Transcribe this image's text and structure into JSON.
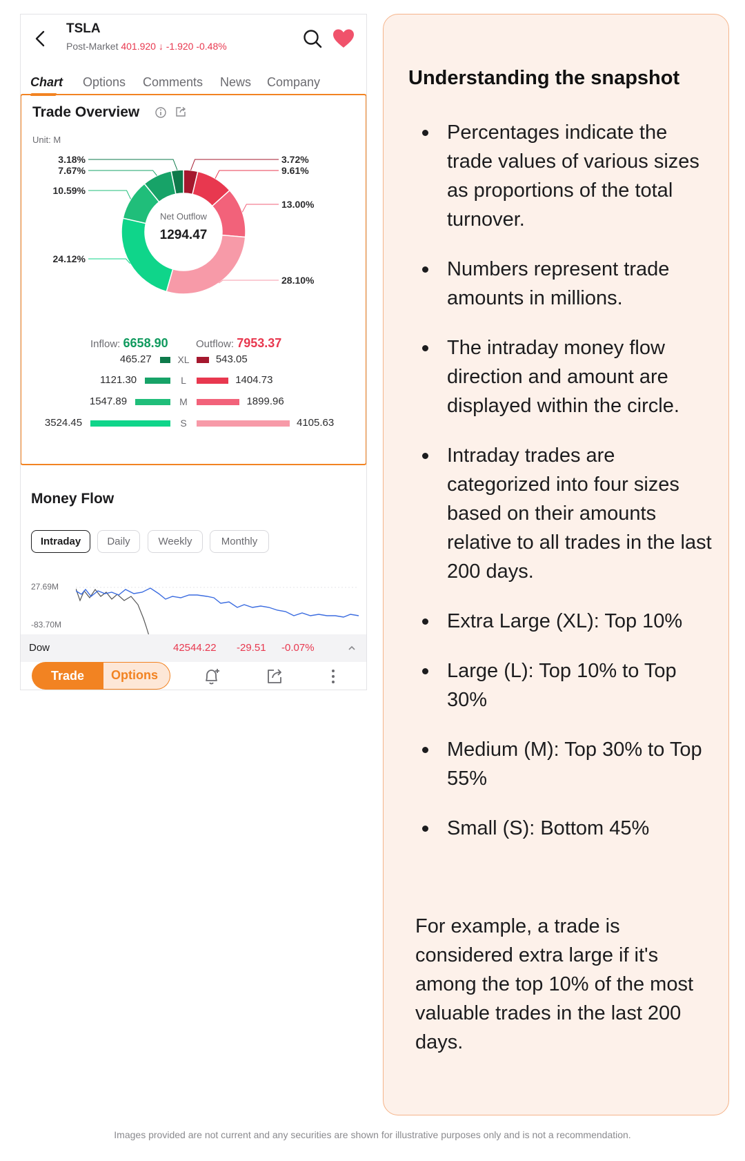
{
  "header": {
    "ticker": "TSLA",
    "session_label": "Post-Market",
    "price": "401.920",
    "change": "-1.920",
    "change_pct": "-0.48%"
  },
  "tabs": [
    {
      "label": "Chart",
      "active": true
    },
    {
      "label": "Options",
      "active": false
    },
    {
      "label": "Comments",
      "active": false
    },
    {
      "label": "News",
      "active": false
    },
    {
      "label": "Company",
      "active": false
    }
  ],
  "trade_overview": {
    "title": "Trade Overview",
    "unit_label": "Unit: M",
    "center_label": "Net Outflow",
    "center_value": "1294.47",
    "inflow_label": "Inflow:",
    "inflow_value": "6658.90",
    "outflow_label": "Outflow:",
    "outflow_value": "7953.37",
    "rows": [
      {
        "cat": "XL",
        "inflow": "465.27",
        "outflow": "543.05"
      },
      {
        "cat": "L",
        "inflow": "1121.30",
        "outflow": "1404.73"
      },
      {
        "cat": "M",
        "inflow": "1547.89",
        "outflow": "1899.96"
      },
      {
        "cat": "S",
        "inflow": "3524.45",
        "outflow": "4105.63"
      }
    ]
  },
  "chart_data": {
    "type": "pie",
    "labels": [
      "Outflow XL",
      "Outflow L",
      "Outflow M",
      "Outflow S",
      "Inflow S",
      "Inflow M",
      "Inflow L",
      "Inflow XL"
    ],
    "values": [
      3.72,
      9.61,
      13.0,
      28.1,
      24.12,
      10.59,
      7.67,
      3.18
    ],
    "value_labels": [
      "3.72%",
      "9.61%",
      "13.00%",
      "28.10%",
      "24.12%",
      "10.59%",
      "7.67%",
      "3.18%"
    ],
    "colors": [
      "#a5182e",
      "#e8384f",
      "#f2627a",
      "#f79aa8",
      "#0fd58a",
      "#20be7a",
      "#17a368",
      "#0e7a4b"
    ],
    "hole": true
  },
  "money_flow": {
    "title": "Money Flow",
    "periods": [
      "Intraday",
      "Daily",
      "Weekly",
      "Monthly"
    ],
    "active_period": "Intraday",
    "y_max_label": "27.69M",
    "y_min_label": "-83.70M"
  },
  "index_bar": {
    "name": "Dow",
    "value": "42544.22",
    "change": "-29.51",
    "change_pct": "-0.07%"
  },
  "bottom_bar": {
    "trade_label": "Trade",
    "options_label": "Options"
  },
  "explanation": {
    "heading": "Understanding the snapshot",
    "bullets": [
      "Percentages indicate the trade values of various sizes as proportions of the total turnover.",
      "Numbers represent trade amounts in millions.",
      "The intraday money flow direction and amount are displayed within the circle.",
      "Intraday trades are categorized into four sizes based on their amounts relative to all trades in the last 200 days.",
      "Extra Large (XL): Top 10%",
      "Large (L): Top 10% to Top 30%",
      "Medium (M): Top 30% to Top 55%",
      "Small (S): Bottom 45%"
    ],
    "example": "For example, a trade is considered extra large if it's among the top 10% of the most valuable trades in the last 200 days."
  },
  "disclaimer": "Images provided are not current and any securities are shown for illustrative purposes only and is not a recommendation."
}
